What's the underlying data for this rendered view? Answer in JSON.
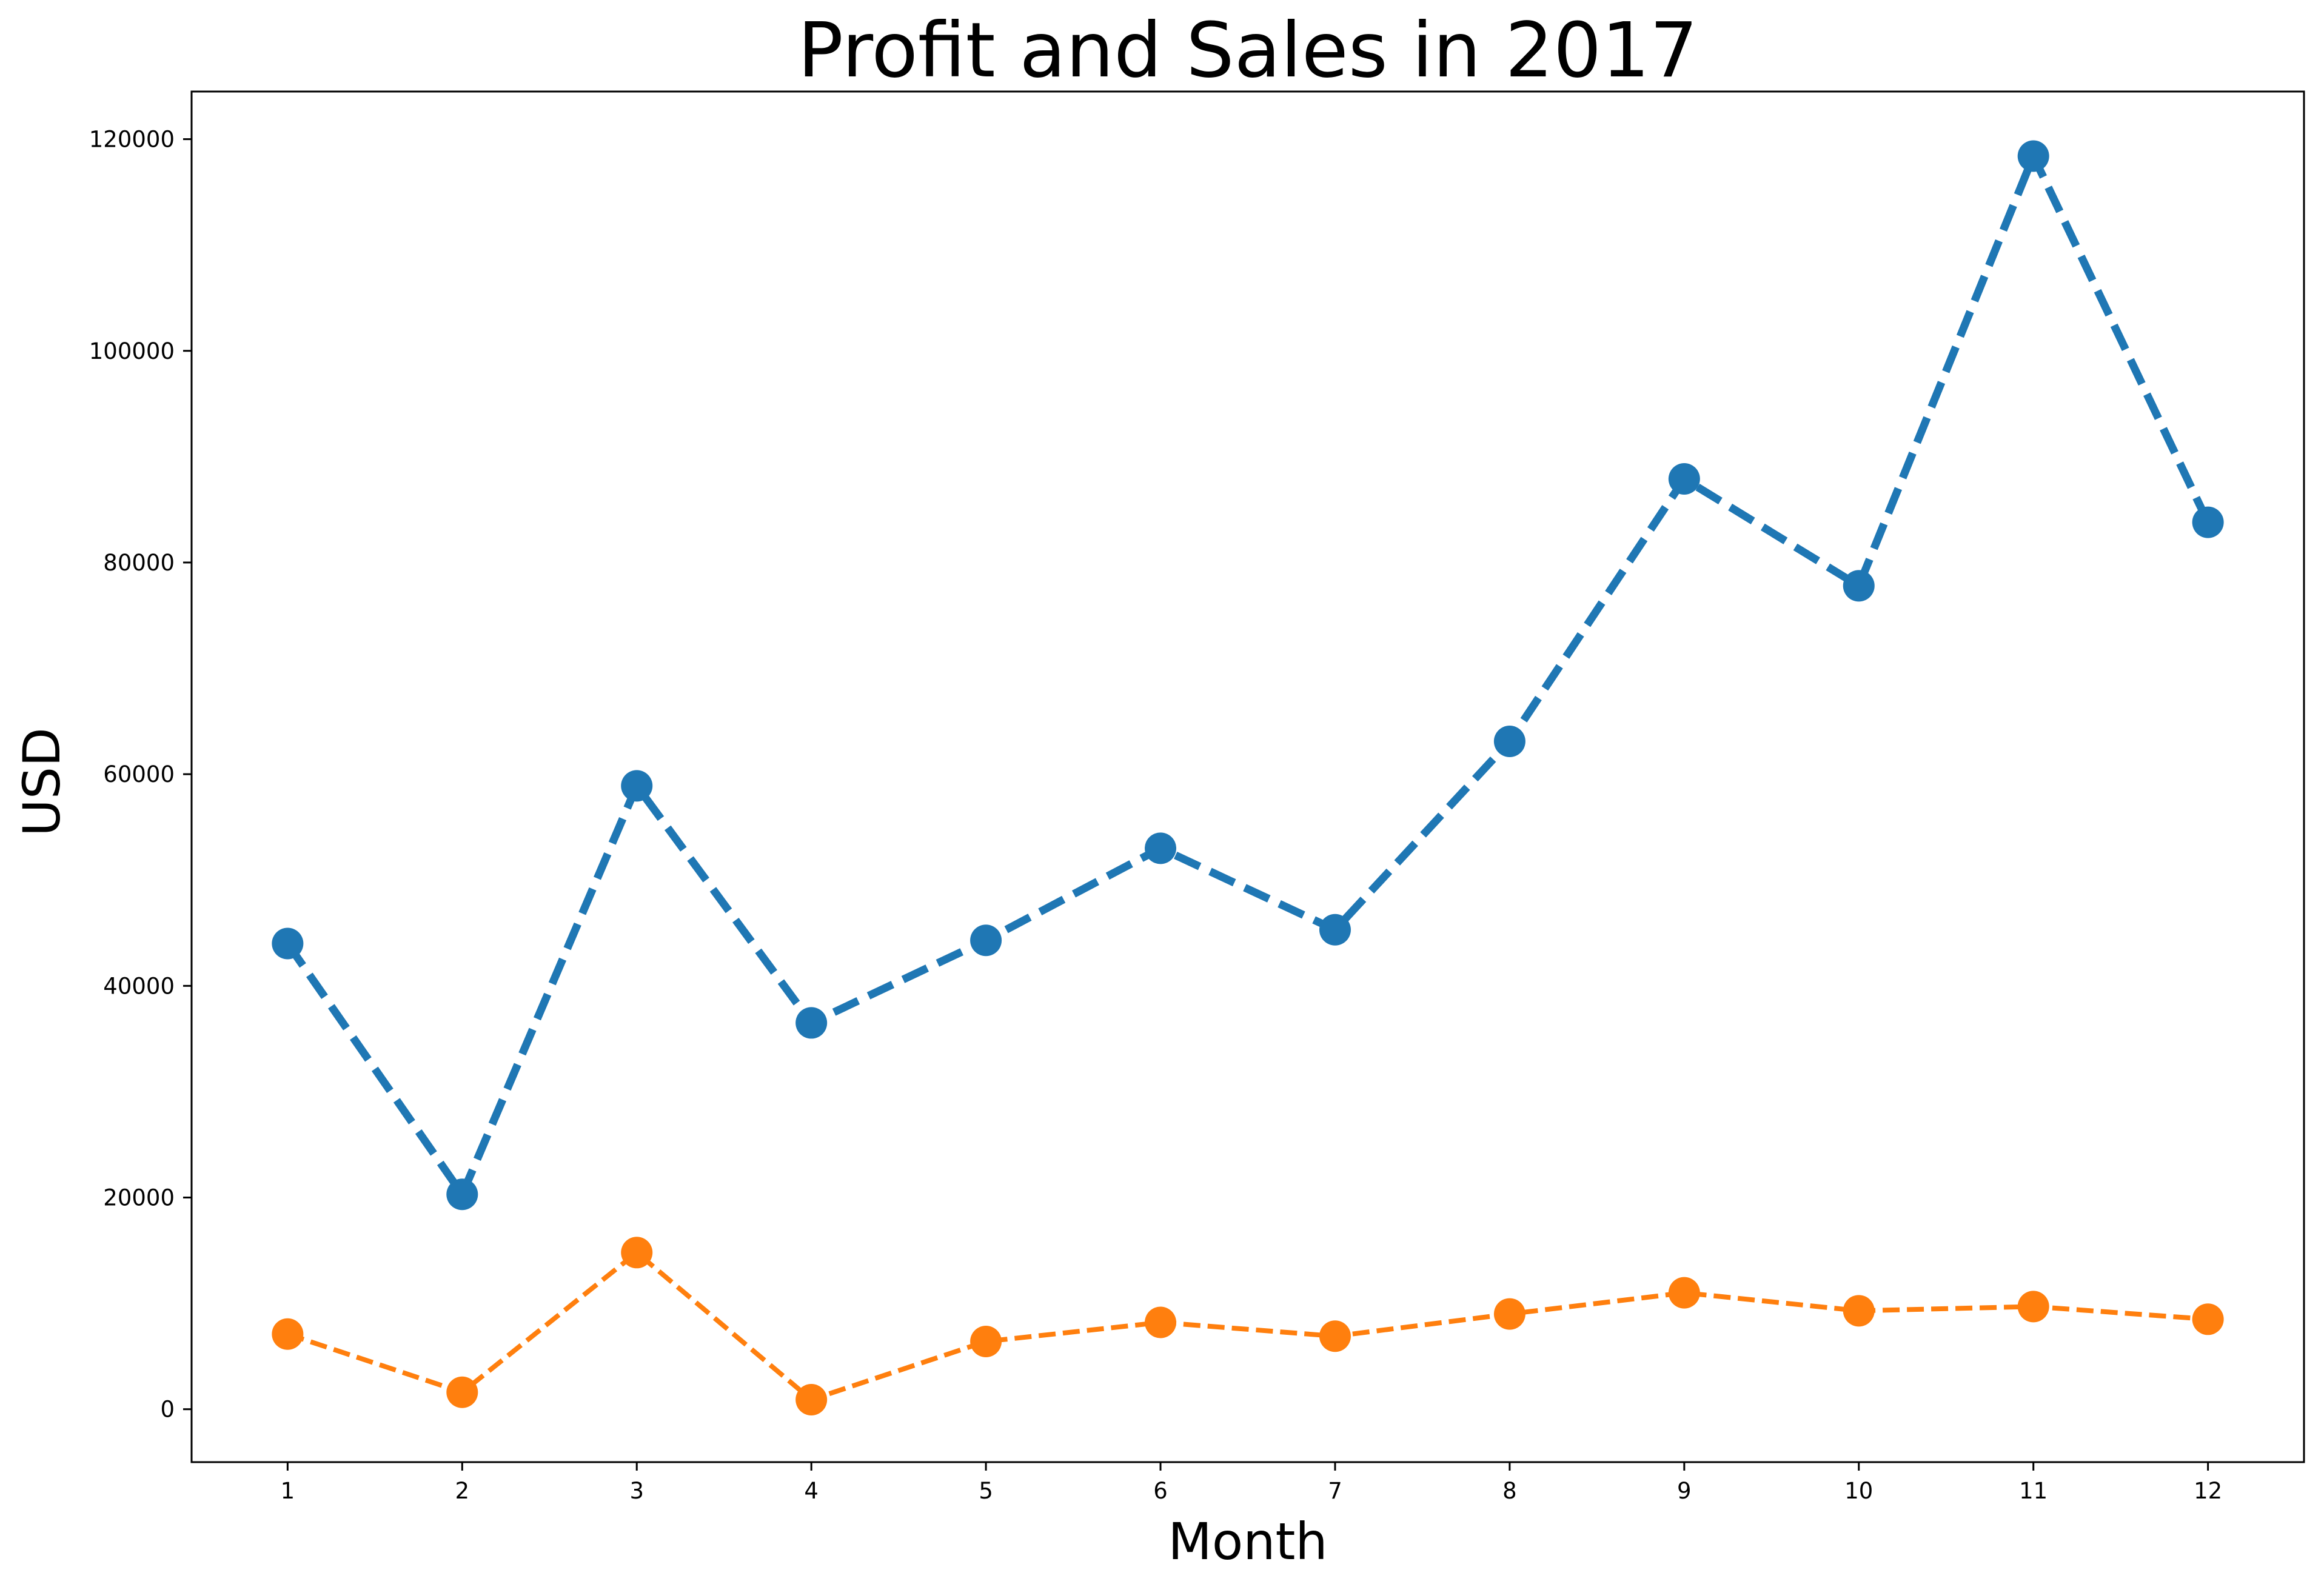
{
  "chart_data": {
    "type": "line",
    "title": "Profit and Sales in 2017",
    "xlabel": "Month",
    "ylabel": "USD",
    "x": [
      1,
      2,
      3,
      4,
      5,
      6,
      7,
      8,
      9,
      10,
      11,
      12
    ],
    "x_tick_labels": [
      "1",
      "2",
      "3",
      "4",
      "5",
      "6",
      "7",
      "8",
      "9",
      "10",
      "11",
      "12"
    ],
    "y_ticks": [
      0,
      20000,
      40000,
      60000,
      80000,
      100000,
      120000
    ],
    "y_tick_labels": [
      "0",
      "20000",
      "40000",
      "60000",
      "80000",
      "100000",
      "120000"
    ],
    "xlim": [
      0.45,
      12.55
    ],
    "ylim": [
      -5000,
      124500
    ],
    "grid": false,
    "series": [
      {
        "values": [
          44000,
          20300,
          58900,
          36500,
          44300,
          53000,
          45300,
          63100,
          87900,
          77800,
          118400,
          83800
        ],
        "color": "#1f77b4",
        "line_style": "dashed",
        "marker": "circle"
      },
      {
        "values": [
          7100,
          1600,
          14800,
          900,
          6400,
          8200,
          6900,
          9000,
          11000,
          9300,
          9700,
          8500
        ],
        "color": "#ff7f0e",
        "line_style": "dashed",
        "marker": "circle"
      }
    ]
  }
}
